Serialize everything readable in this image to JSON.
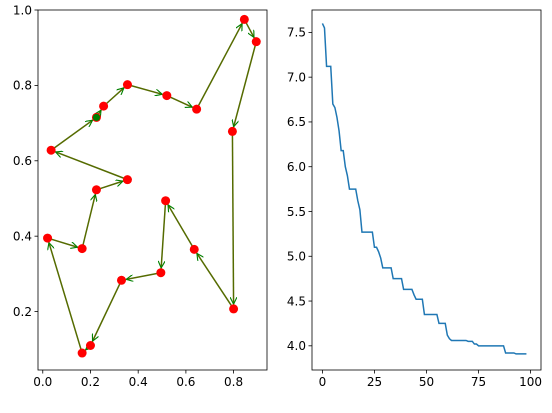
{
  "chart_data": [
    {
      "type": "scatter",
      "title": "",
      "xlabel": "",
      "ylabel": "",
      "xlim": [
        -0.02,
        0.94
      ],
      "ylim": [
        0.045,
        1.0
      ],
      "xticks": [
        0.0,
        0.2,
        0.4,
        0.6,
        0.8
      ],
      "xtick_labels": [
        "0.0",
        "0.2",
        "0.4",
        "0.6",
        "0.8"
      ],
      "yticks": [
        0.2,
        0.4,
        0.6,
        0.8,
        1.0
      ],
      "ytick_labels": [
        "0.2",
        "0.4",
        "0.6",
        "0.8",
        "1.0"
      ],
      "grid": false,
      "point_color": "#ff0000",
      "edge_color": "#556b00",
      "arrow_color": "#008000",
      "start_marker_color": "#008000",
      "tour_start": [
        0.225,
        0.715
      ],
      "points": [
        {
          "x": 0.225,
          "y": 0.715
        },
        {
          "x": 0.255,
          "y": 0.745
        },
        {
          "x": 0.355,
          "y": 0.802
        },
        {
          "x": 0.52,
          "y": 0.773
        },
        {
          "x": 0.645,
          "y": 0.737
        },
        {
          "x": 0.845,
          "y": 0.975
        },
        {
          "x": 0.895,
          "y": 0.916
        },
        {
          "x": 0.795,
          "y": 0.678
        },
        {
          "x": 0.8,
          "y": 0.207
        },
        {
          "x": 0.635,
          "y": 0.365
        },
        {
          "x": 0.515,
          "y": 0.494
        },
        {
          "x": 0.495,
          "y": 0.303
        },
        {
          "x": 0.33,
          "y": 0.283
        },
        {
          "x": 0.2,
          "y": 0.11
        },
        {
          "x": 0.165,
          "y": 0.09
        },
        {
          "x": 0.02,
          "y": 0.395
        },
        {
          "x": 0.165,
          "y": 0.367
        },
        {
          "x": 0.225,
          "y": 0.523
        },
        {
          "x": 0.355,
          "y": 0.55
        },
        {
          "x": 0.035,
          "y": 0.628
        }
      ]
    },
    {
      "type": "line",
      "title": "",
      "xlabel": "",
      "ylabel": "",
      "xlim": [
        -5,
        105
      ],
      "ylim": [
        3.73,
        7.75
      ],
      "xticks": [
        0,
        25,
        50,
        75,
        100
      ],
      "xtick_labels": [
        "0",
        "25",
        "50",
        "75",
        "100"
      ],
      "yticks": [
        4.0,
        4.5,
        5.0,
        5.5,
        6.0,
        6.5,
        7.0,
        7.5
      ],
      "ytick_labels": [
        "4.0",
        "4.5",
        "5.0",
        "5.5",
        "6.0",
        "6.5",
        "7.0",
        "7.5"
      ],
      "grid": false,
      "line_color": "#1f77b4",
      "series": [
        {
          "x": [
            0,
            1,
            2,
            3,
            4,
            5,
            6,
            7,
            8,
            9,
            10,
            11,
            12,
            13,
            14,
            15,
            16,
            17,
            18,
            19,
            20,
            21,
            22,
            23,
            24,
            25,
            26,
            27,
            28,
            29,
            30,
            31,
            32,
            33,
            34,
            35,
            36,
            37,
            38,
            39,
            40,
            41,
            42,
            43,
            44,
            45,
            46,
            47,
            48,
            49,
            50,
            51,
            52,
            53,
            54,
            55,
            56,
            57,
            58,
            59,
            60,
            61,
            62,
            63,
            64,
            65,
            66,
            67,
            68,
            69,
            70,
            71,
            72,
            73,
            74,
            75,
            76,
            77,
            78,
            79,
            80,
            81,
            82,
            83,
            84,
            85,
            86,
            87,
            88,
            89,
            90,
            91,
            92,
            93,
            94,
            95,
            96,
            97,
            98
          ],
          "values": [
            7.6,
            7.55,
            7.12,
            7.12,
            7.12,
            6.7,
            6.66,
            6.55,
            6.4,
            6.18,
            6.18,
            6.0,
            5.9,
            5.75,
            5.75,
            5.75,
            5.75,
            5.62,
            5.52,
            5.27,
            5.27,
            5.27,
            5.27,
            5.27,
            5.27,
            5.1,
            5.1,
            5.05,
            4.98,
            4.87,
            4.87,
            4.87,
            4.87,
            4.87,
            4.75,
            4.75,
            4.75,
            4.75,
            4.75,
            4.63,
            4.63,
            4.63,
            4.63,
            4.63,
            4.57,
            4.52,
            4.52,
            4.52,
            4.52,
            4.35,
            4.35,
            4.35,
            4.35,
            4.35,
            4.35,
            4.35,
            4.25,
            4.25,
            4.25,
            4.25,
            4.12,
            4.08,
            4.06,
            4.06,
            4.06,
            4.06,
            4.06,
            4.06,
            4.06,
            4.06,
            4.05,
            4.05,
            4.05,
            4.02,
            4.02,
            4.0,
            4.0,
            4.0,
            4.0,
            4.0,
            4.0,
            4.0,
            4.0,
            4.0,
            4.0,
            4.0,
            4.0,
            4.0,
            3.92,
            3.92,
            3.92,
            3.92,
            3.92,
            3.91,
            3.91,
            3.91,
            3.91,
            3.91,
            3.91
          ]
        }
      ]
    }
  ]
}
